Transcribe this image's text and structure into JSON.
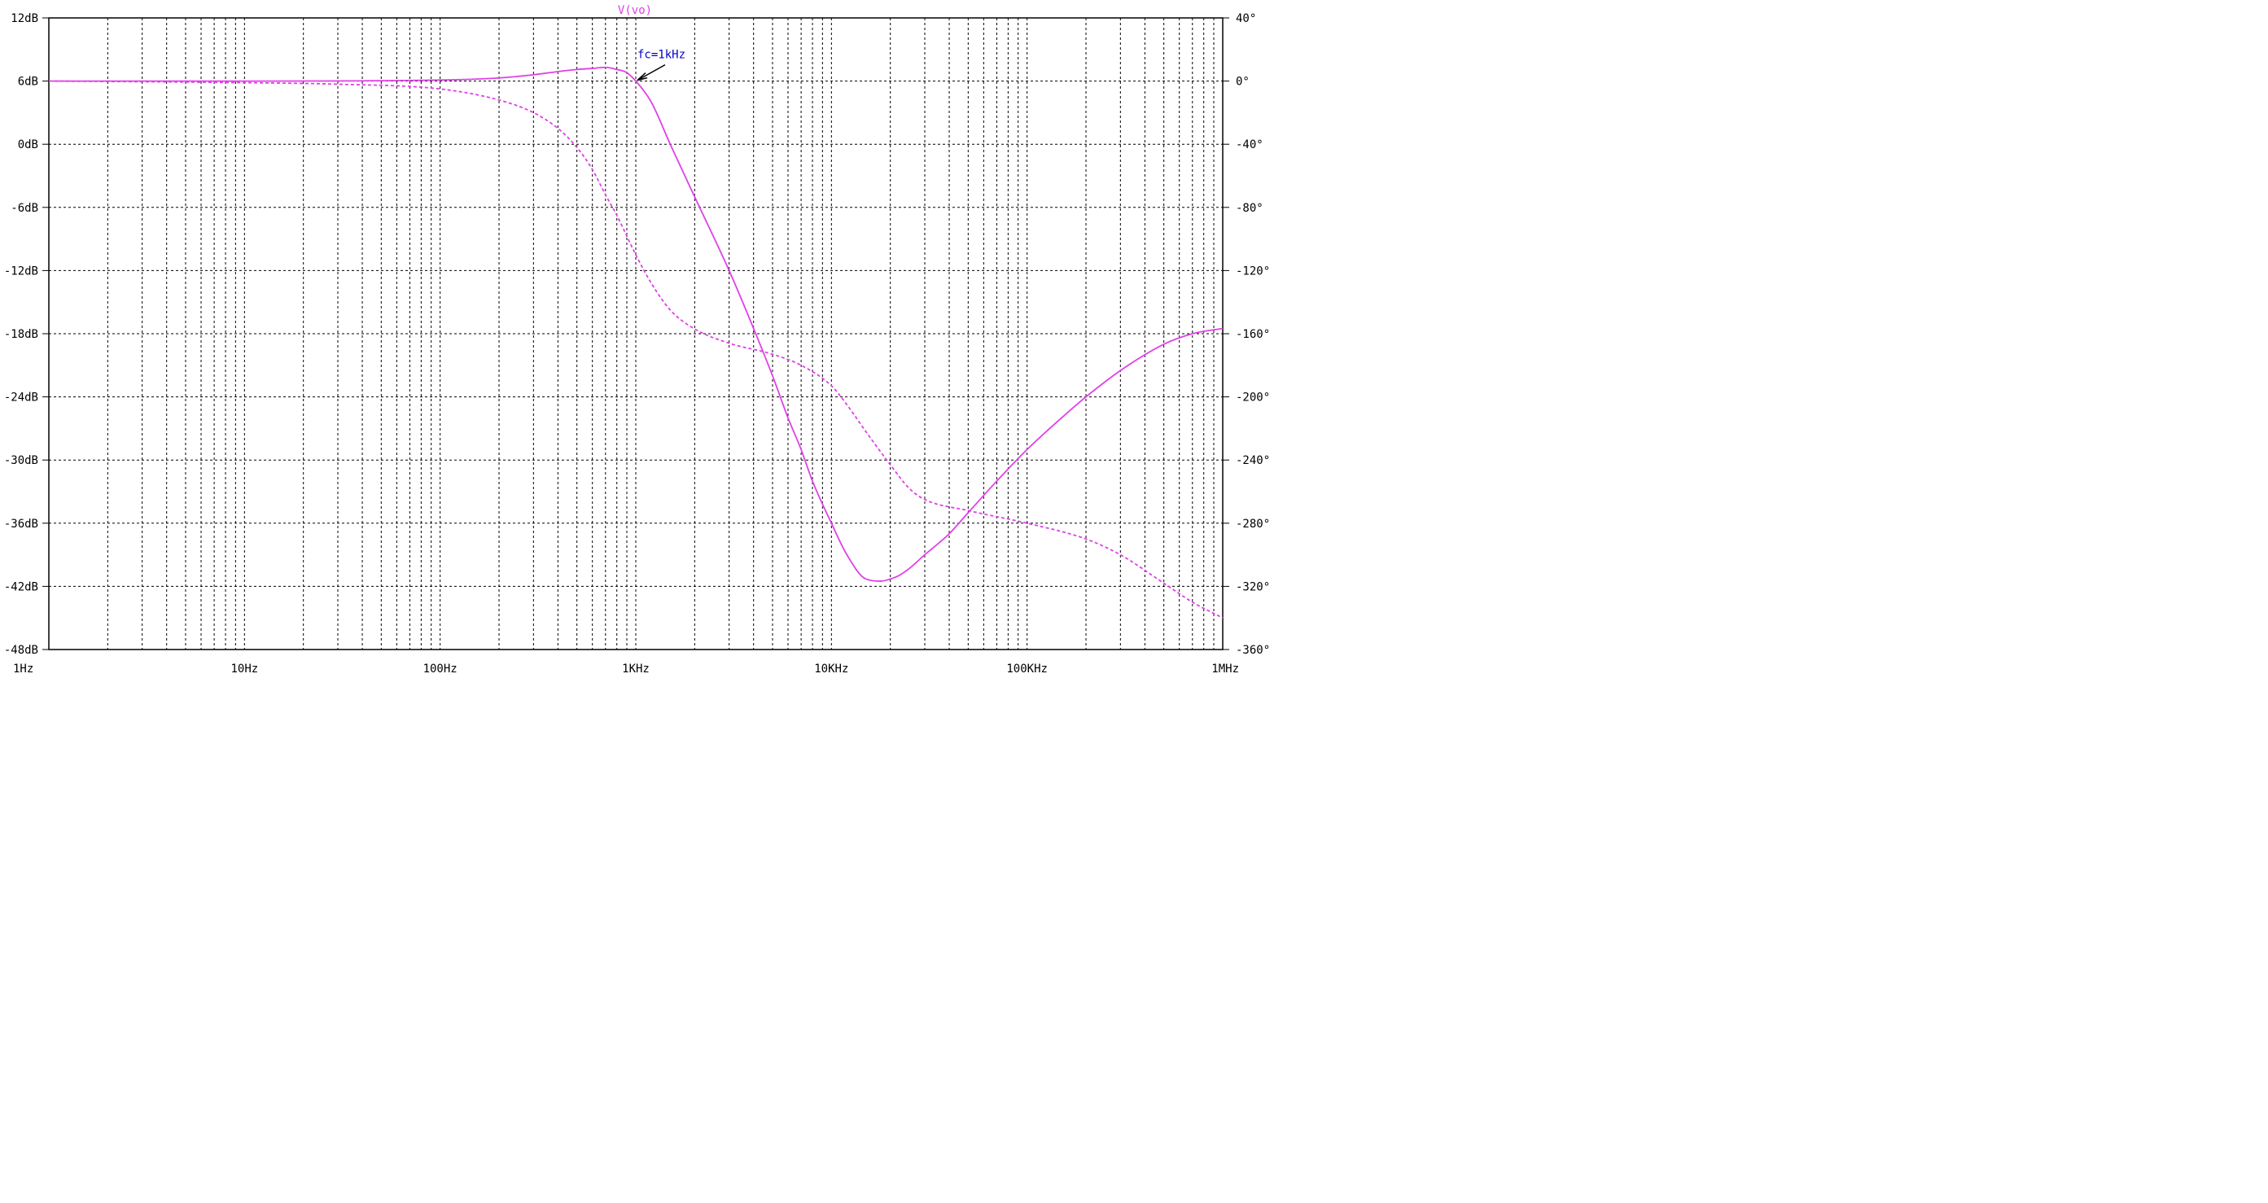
{
  "chart_data": {
    "type": "line",
    "title": "V(vo)",
    "x_scale": "log",
    "xlim": [
      1,
      1000000
    ],
    "x_tick_labels": [
      "1Hz",
      "10Hz",
      "100Hz",
      "1KHz",
      "10KHz",
      "100KHz",
      "1MHz"
    ],
    "x_tick_values": [
      1,
      10,
      100,
      1000,
      10000,
      100000,
      1000000
    ],
    "y_left": {
      "unit": "dB",
      "ylim": [
        -48,
        12
      ],
      "tick_values": [
        12,
        6,
        0,
        -6,
        -12,
        -18,
        -24,
        -30,
        -36,
        -42,
        -48
      ],
      "tick_labels": [
        "12dB",
        "6dB",
        "0dB",
        "-6dB",
        "-12dB",
        "-18dB",
        "-24dB",
        "-30dB",
        "-36dB",
        "-42dB",
        "-48dB"
      ]
    },
    "y_right": {
      "unit": "deg",
      "ylim": [
        -360,
        40
      ],
      "tick_values": [
        40,
        0,
        -40,
        -80,
        -120,
        -160,
        -200,
        -240,
        -280,
        -320,
        -360
      ],
      "tick_labels": [
        "40°",
        "0°",
        "-40°",
        "-80°",
        "-120°",
        "-160°",
        "-200°",
        "-240°",
        "-280°",
        "-320°",
        "-360°"
      ]
    },
    "grid": true,
    "series": [
      {
        "name": "V(vo)",
        "quantity": "magnitude",
        "axis": "left",
        "style": "solid",
        "color": "#e040e8",
        "x": [
          1,
          10,
          100,
          200,
          300,
          400,
          500,
          600,
          700,
          800,
          900,
          1000,
          1200,
          1500,
          2000,
          3000,
          4000,
          5000,
          6000,
          7000,
          8000,
          10000,
          12000,
          15000,
          18000,
          20000,
          22000,
          25000,
          30000,
          40000,
          50000,
          70000,
          100000,
          150000,
          200000,
          300000,
          500000,
          700000,
          1000000
        ],
        "y": [
          6,
          6,
          6.1,
          6.3,
          6.6,
          6.9,
          7.1,
          7.2,
          7.3,
          7.1,
          6.8,
          6,
          4,
          0,
          -5,
          -12,
          -17.5,
          -22,
          -26,
          -29,
          -32,
          -36,
          -39,
          -41.3,
          -41.5,
          -41.3,
          -41,
          -40.3,
          -39,
          -37,
          -35,
          -32,
          -29,
          -26,
          -24,
          -21.5,
          -19,
          -18,
          -17.5
        ]
      },
      {
        "name": "V(vo)",
        "quantity": "phase",
        "axis": "right",
        "style": "dashed",
        "color": "#e040e8",
        "x": [
          1,
          10,
          30,
          100,
          200,
          300,
          400,
          500,
          600,
          700,
          800,
          1000,
          1200,
          1500,
          2000,
          3000,
          5000,
          7000,
          10000,
          12000,
          15000,
          20000,
          25000,
          30000,
          50000,
          100000,
          200000,
          300000,
          500000,
          700000,
          1000000
        ],
        "y": [
          0,
          -1,
          -2,
          -5,
          -12,
          -20,
          -30,
          -42,
          -56,
          -72,
          -85,
          -110,
          -128,
          -145,
          -157,
          -166,
          -173,
          -180,
          -193,
          -205,
          -222,
          -243,
          -258,
          -265,
          -272,
          -280,
          -290,
          -300,
          -318,
          -330,
          -340
        ]
      }
    ],
    "annotations": [
      {
        "text": "fc=1kHz",
        "color": "#0000cc",
        "x": 1000,
        "y": 6
      }
    ]
  }
}
